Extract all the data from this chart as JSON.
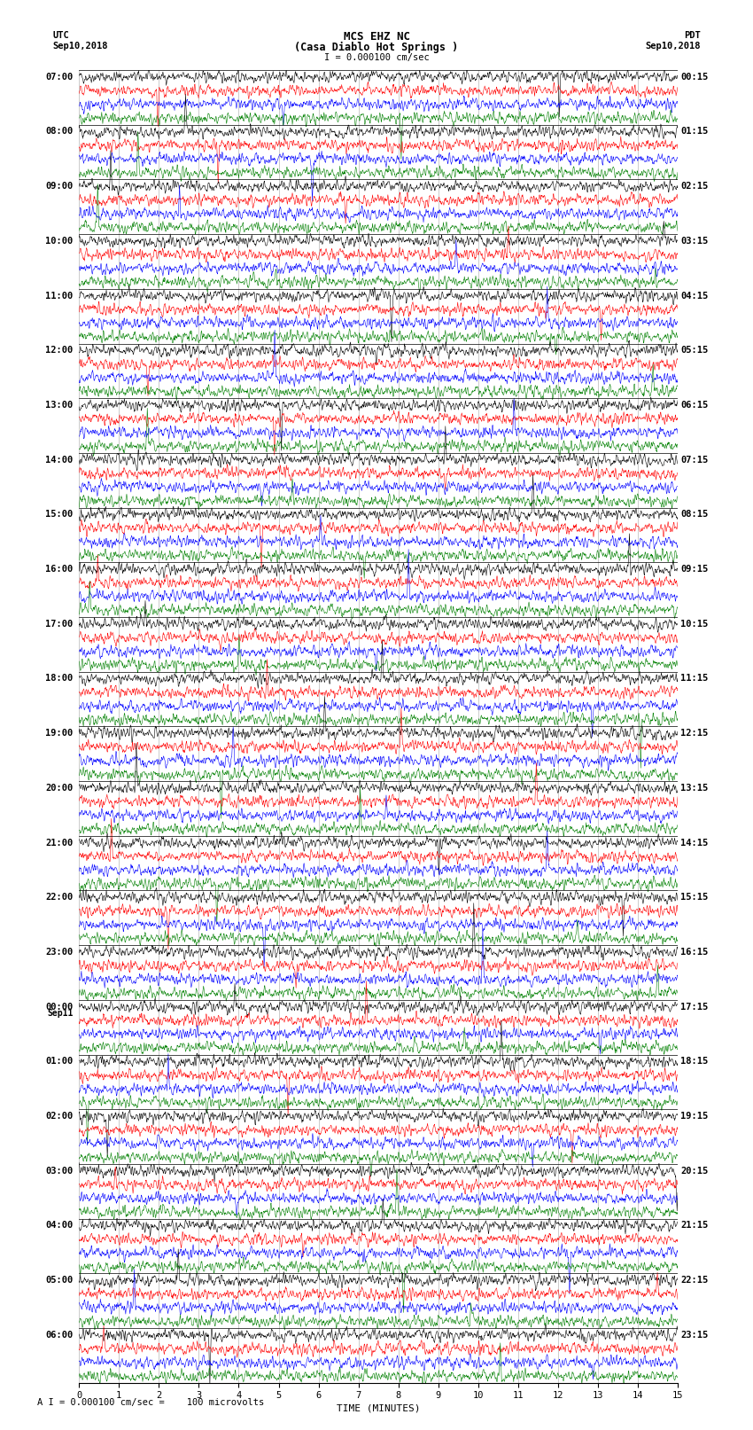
{
  "title_line1": "MCS EHZ NC",
  "title_line2": "(Casa Diablo Hot Springs )",
  "scale_label": "I = 0.000100 cm/sec",
  "footer_label": "A I = 0.000100 cm/sec =    100 microvolts",
  "utc_label": "UTC",
  "utc_date": "Sep10,2018",
  "pdt_label": "PDT",
  "pdt_date": "Sep10,2018",
  "xlabel": "TIME (MINUTES)",
  "left_times": [
    "07:00",
    "08:00",
    "09:00",
    "10:00",
    "11:00",
    "12:00",
    "13:00",
    "14:00",
    "15:00",
    "16:00",
    "17:00",
    "18:00",
    "19:00",
    "20:00",
    "21:00",
    "22:00",
    "23:00",
    "Sep11\n00:00",
    "01:00",
    "02:00",
    "03:00",
    "04:00",
    "05:00",
    "06:00"
  ],
  "right_times": [
    "00:15",
    "01:15",
    "02:15",
    "03:15",
    "04:15",
    "05:15",
    "06:15",
    "07:15",
    "08:15",
    "09:15",
    "10:15",
    "11:15",
    "12:15",
    "13:15",
    "14:15",
    "15:15",
    "16:15",
    "17:15",
    "18:15",
    "19:15",
    "20:15",
    "21:15",
    "22:15",
    "23:15"
  ],
  "n_hours": 24,
  "traces_per_hour": 4,
  "colors": [
    "black",
    "red",
    "blue",
    "green"
  ],
  "noise_amplitude": 0.3,
  "xlim": [
    0,
    15
  ],
  "xticks": [
    0,
    1,
    2,
    3,
    4,
    5,
    6,
    7,
    8,
    9,
    10,
    11,
    12,
    13,
    14,
    15
  ],
  "background_color": "white",
  "grid_color": "#999999",
  "title_fontsize": 9,
  "label_fontsize": 8,
  "tick_fontsize": 7.5,
  "seed": 42
}
